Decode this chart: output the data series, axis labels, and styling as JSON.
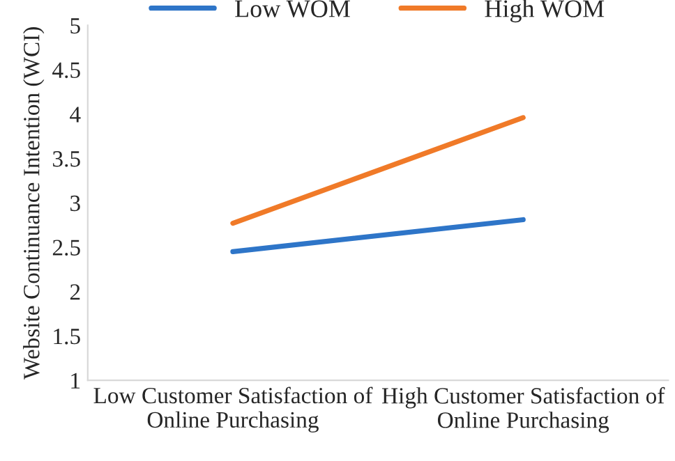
{
  "chart_data": {
    "type": "line",
    "ylabel": "Website Continuance Intention (WCI)",
    "categories": [
      "Low Customer Satisfaction of\nOnline Purchasing",
      "High Customer Satisfaction of\nOnline Purchasing"
    ],
    "series": [
      {
        "name": "Low WOM",
        "color": "#2e75c8",
        "values": [
          2.45,
          2.81
        ]
      },
      {
        "name": "High WOM",
        "color": "#f07a28",
        "values": [
          2.77,
          3.96
        ]
      }
    ],
    "ylim": [
      1,
      5
    ],
    "yticks": [
      1,
      1.5,
      2,
      2.5,
      3,
      3.5,
      4,
      4.5,
      5
    ],
    "grid": false,
    "legend": "top",
    "marker": "none",
    "line_style": "solid"
  }
}
